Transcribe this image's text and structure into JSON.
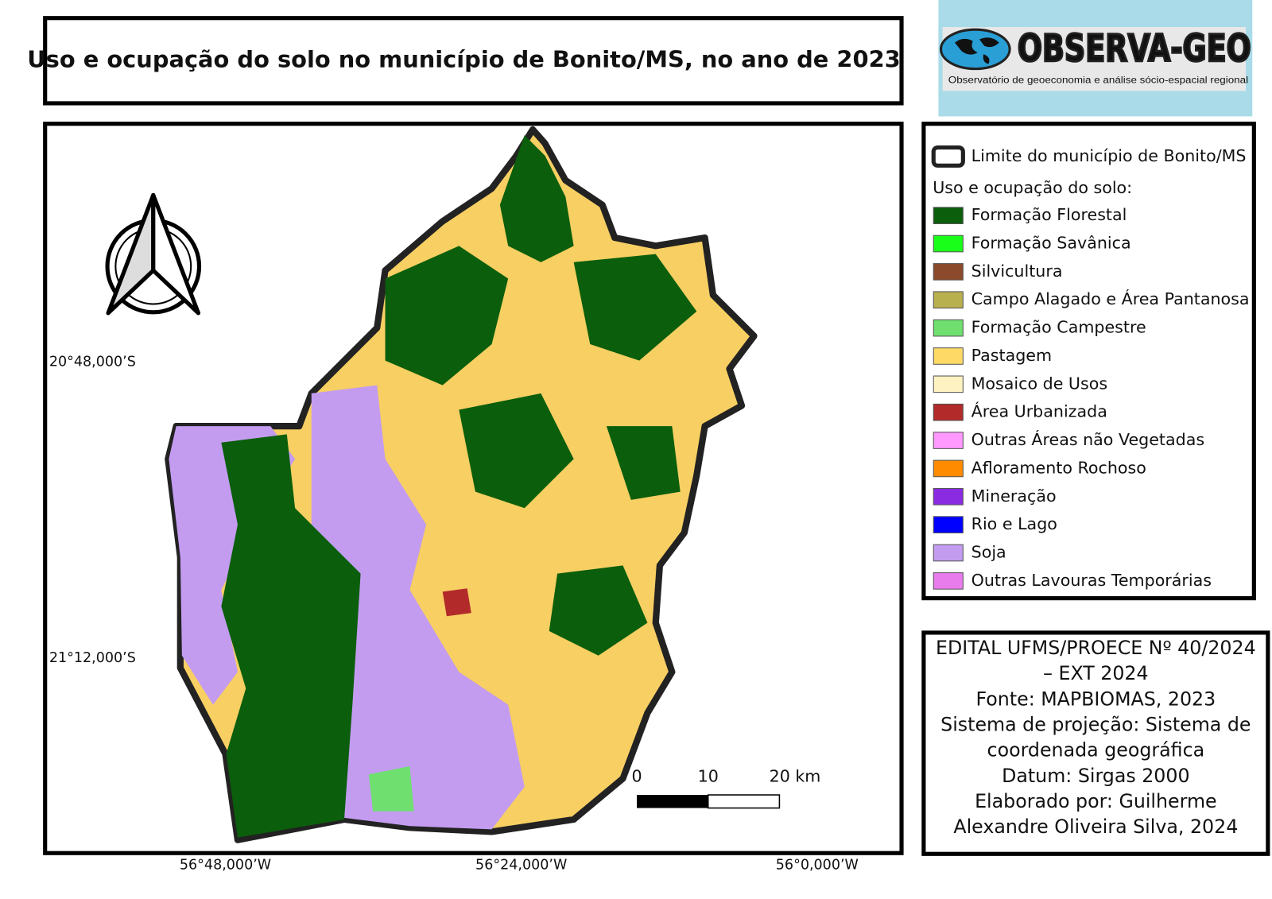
{
  "title": "Uso e ocupação do solo no município de Bonito/MS, no ano de 2023",
  "logo": {
    "name": "OBSERVA-GEO",
    "subtitle": "Observatório de geoeconomia e análise sócio-espacial regional"
  },
  "map": {
    "lat_labels": [
      "20°48,000’S",
      "21°12,000’S"
    ],
    "lon_labels": [
      "56°48,000’W",
      "56°24,000’W",
      "56°0,000’W"
    ],
    "scale_bar": [
      "0",
      "10",
      "20 km"
    ]
  },
  "legend": {
    "boundary": "Limite do município de Bonito/MS",
    "heading": "Uso e ocupação do solo:",
    "items": [
      {
        "label": "Formação Florestal",
        "color": "#0b5e0b"
      },
      {
        "label": "Formação Savânica",
        "color": "#1aff1a"
      },
      {
        "label": "Silvicultura",
        "color": "#8b4a2b"
      },
      {
        "label": "Campo Alagado e Área Pantanosa",
        "color": "#b8af4f"
      },
      {
        "label": "Formação Campestre",
        "color": "#6fe06f"
      },
      {
        "label": "Pastagem",
        "color": "#ffd966"
      },
      {
        "label": "Mosaico de Usos",
        "color": "#fff2c2"
      },
      {
        "label": "Área Urbanizada",
        "color": "#b22a2a"
      },
      {
        "label": "Outras Áreas não Vegetadas",
        "color": "#ff99ff"
      },
      {
        "label": "Afloramento Rochoso",
        "color": "#ff8c00"
      },
      {
        "label": "Mineração",
        "color": "#8a2be2"
      },
      {
        "label": "Rio e Lago",
        "color": "#0000ff"
      },
      {
        "label": "Soja",
        "color": "#c39cf0"
      },
      {
        "label": "Outras Lavouras Temporárias",
        "color": "#e97ced"
      }
    ]
  },
  "info": {
    "lines": [
      "EDITAL UFMS/PROECE Nº 40/2024",
      "– EXT 2024",
      "Fonte: MAPBIOMAS, 2023",
      "Sistema de projeção: Sistema de",
      "coordenada geográfica",
      "Datum: Sirgas 2000",
      "Elaborado por: Guilherme",
      "Alexandre Oliveira Silva, 2024"
    ]
  }
}
